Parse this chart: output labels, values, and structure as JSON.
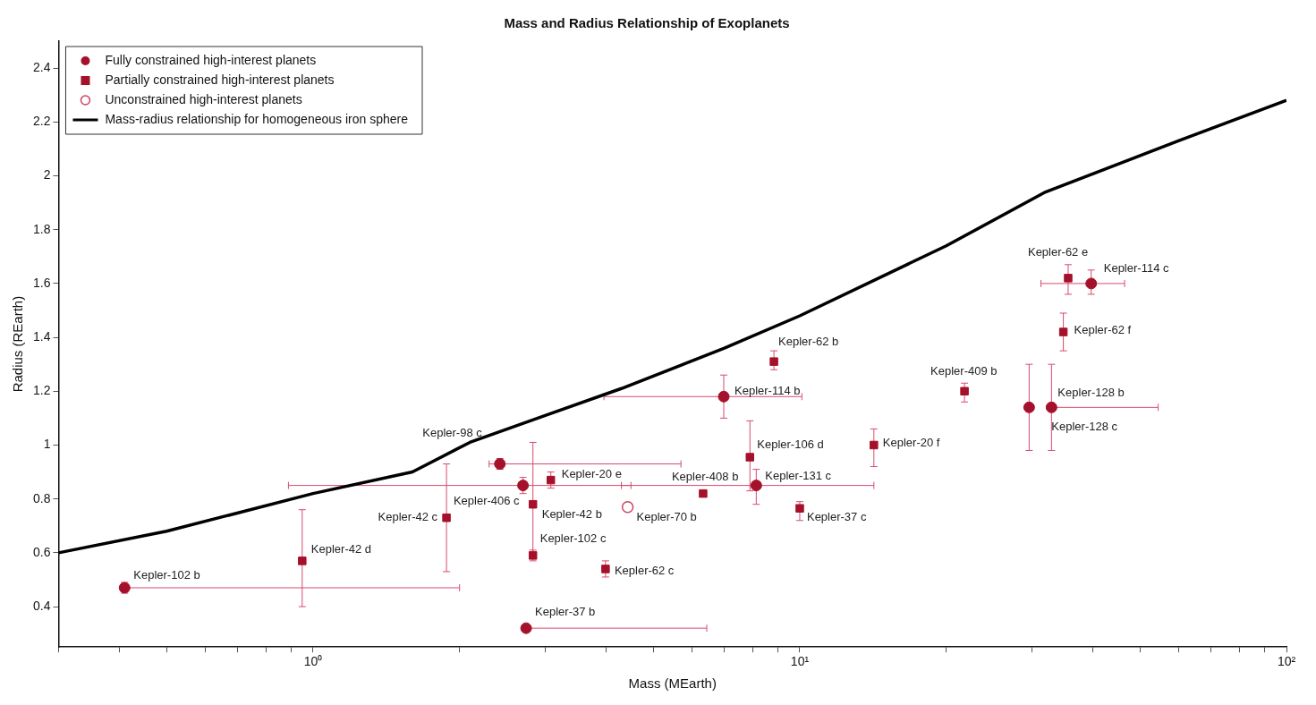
{
  "chart_data": {
    "type": "scatter",
    "title": "Mass and Radius Relationship of Exoplanets",
    "xlabel": "Mass (MEarth)",
    "ylabel": "Radius (REarth)",
    "log": "x",
    "grid": false,
    "legend": "top left",
    "xlim": [
      0.3,
      100
    ],
    "ylim": [
      0.25,
      2.5
    ],
    "xticks": [
      {
        "value": 0.3,
        "label": null
      },
      {
        "value": 0.4,
        "label": null
      },
      {
        "value": 0.5,
        "label": null
      },
      {
        "value": 0.6,
        "label": null
      },
      {
        "value": 0.7,
        "label": null
      },
      {
        "value": 0.8,
        "label": null
      },
      {
        "value": 0.9,
        "label": null
      },
      {
        "value": 1,
        "label": "10⁰"
      },
      {
        "value": 2,
        "label": null
      },
      {
        "value": 3,
        "label": null
      },
      {
        "value": 4,
        "label": null
      },
      {
        "value": 5,
        "label": null
      },
      {
        "value": 6,
        "label": null
      },
      {
        "value": 7,
        "label": null
      },
      {
        "value": 8,
        "label": null
      },
      {
        "value": 9,
        "label": null
      },
      {
        "value": 10,
        "label": "10¹"
      },
      {
        "value": 20,
        "label": null
      },
      {
        "value": 30,
        "label": null
      },
      {
        "value": 40,
        "label": null
      },
      {
        "value": 50,
        "label": null
      },
      {
        "value": 60,
        "label": null
      },
      {
        "value": 70,
        "label": null
      },
      {
        "value": 80,
        "label": null
      },
      {
        "value": 90,
        "label": null
      },
      {
        "value": 100,
        "label": "10²"
      }
    ],
    "yticks": [
      0.4,
      0.6,
      0.8,
      1,
      1.2,
      1.4,
      1.6,
      1.8,
      2,
      2.2,
      2.4
    ],
    "series": [
      {
        "name": "Fully constrained high-interest planets",
        "marker": "circle",
        "color": "#a5102a",
        "x": [
          0.41,
          2.42,
          2.7,
          6.98,
          8.14,
          29.6,
          32.9,
          39.7,
          2.74
        ],
        "values": [
          0.47,
          0.93,
          0.85,
          1.18,
          0.85,
          1.14,
          1.14,
          1.6,
          0.32
        ],
        "errors": [
          [
            0.45,
            0.49
          ],
          [
            0.91,
            0.95
          ],
          [
            0.82,
            0.88
          ],
          [
            1.1,
            1.26
          ],
          [
            0.78,
            0.91
          ],
          [
            0.98,
            1.3
          ],
          [
            0.98,
            1.3
          ],
          [
            1.56,
            1.65
          ],
          [
            0.31,
            0.33
          ]
        ],
        "xerrors": [
          [
            0.41,
            2
          ],
          [
            2.3,
            5.7
          ],
          [
            0.89,
            4.5
          ],
          [
            3.96,
            10.1
          ],
          [
            4.3,
            14.2
          ],
          null,
          [
            32.9,
            54.5
          ],
          [
            31.3,
            46.5
          ],
          [
            2.74,
            6.44
          ]
        ]
      },
      {
        "name": "Partially constrained high-interest planets",
        "marker": "square",
        "color": "#a5102a",
        "x": [
          0.95,
          1.88,
          3.08,
          2.83,
          2.83,
          3.99,
          6.33,
          7.9,
          8.85,
          10,
          14.2,
          21.8,
          35.6,
          34.8
        ],
        "values": [
          0.57,
          0.73,
          0.87,
          0.78,
          0.59,
          0.54,
          0.82,
          0.955,
          1.31,
          0.765,
          1,
          1.2,
          1.62,
          1.42
        ],
        "errors": [
          [
            0.4,
            0.76
          ],
          [
            0.53,
            0.93
          ],
          [
            0.84,
            0.9
          ],
          [
            0.58,
            1.01
          ],
          [
            0.57,
            0.61
          ],
          [
            0.51,
            0.57
          ],
          null,
          [
            0.83,
            1.09
          ],
          [
            1.28,
            1.35
          ],
          [
            0.72,
            0.79
          ],
          [
            0.92,
            1.06
          ],
          [
            1.16,
            1.23
          ],
          [
            1.56,
            1.67
          ],
          [
            1.35,
            1.49
          ]
        ]
      },
      {
        "name": "Unconstrained high-interest planets",
        "marker": "circle",
        "color": "#d04060",
        "x": [
          4.43
        ],
        "values": [
          0.77
        ]
      },
      {
        "name": "Mass-radius relationship for homogeneous iron sphere",
        "type": "line",
        "marker": "none",
        "color": "#000000",
        "x": [
          0.3,
          0.5,
          1,
          1.6,
          2.1,
          3,
          4.3,
          7,
          10,
          20,
          32,
          60,
          100
        ],
        "values": [
          0.6,
          0.68,
          0.82,
          0.9,
          1.01,
          1.11,
          1.21,
          1.36,
          1.48,
          1.74,
          1.94,
          2.13,
          2.28
        ]
      }
    ],
    "annotations": [
      {
        "text": "Kepler-102 b",
        "x": 0.41,
        "y": 0.47
      },
      {
        "text": "Kepler-98 c",
        "x": 2.42,
        "y": 0.93
      },
      {
        "text": "Kepler-406 c",
        "x": 2.7,
        "y": 0.85
      },
      {
        "text": "Kepler-114 b",
        "x": 6.98,
        "y": 1.18
      },
      {
        "text": "Kepler-131 c",
        "x": 8.14,
        "y": 0.85
      },
      {
        "text": "Kepler-128 b",
        "x": 29.6,
        "y": 1.14
      },
      {
        "text": "Kepler-128 c",
        "x": 32.9,
        "y": 1.14
      },
      {
        "text": "Kepler-114 c",
        "x": 39.7,
        "y": 1.6
      },
      {
        "text": "Kepler-37 b",
        "x": 2.74,
        "y": 0.32
      },
      {
        "text": "Kepler-42 d",
        "x": 0.95,
        "y": 0.57
      },
      {
        "text": "Kepler-42 c",
        "x": 1.88,
        "y": 0.73
      },
      {
        "text": "Kepler-20 e",
        "x": 3.08,
        "y": 0.87
      },
      {
        "text": "Kepler-42 b",
        "x": 2.83,
        "y": 0.78
      },
      {
        "text": "Kepler-102 c",
        "x": 2.83,
        "y": 0.59
      },
      {
        "text": "Kepler-62 c",
        "x": 3.99,
        "y": 0.54
      },
      {
        "text": "Kepler-408 b",
        "x": 6.33,
        "y": 0.82
      },
      {
        "text": "Kepler-106 d",
        "x": 7.9,
        "y": 0.955
      },
      {
        "text": "Kepler-62 b",
        "x": 8.85,
        "y": 1.31
      },
      {
        "text": "Kepler-37 c",
        "x": 10,
        "y": 0.765
      },
      {
        "text": "Kepler-20 f",
        "x": 14.2,
        "y": 1
      },
      {
        "text": "Kepler-409 b",
        "x": 21.8,
        "y": 1.2
      },
      {
        "text": "Kepler-62 e",
        "x": 35.6,
        "y": 1.62
      },
      {
        "text": "Kepler-62 f",
        "x": 34.8,
        "y": 1.42
      },
      {
        "text": "Kepler-70 b",
        "x": 4.43,
        "y": 0.77
      }
    ]
  }
}
